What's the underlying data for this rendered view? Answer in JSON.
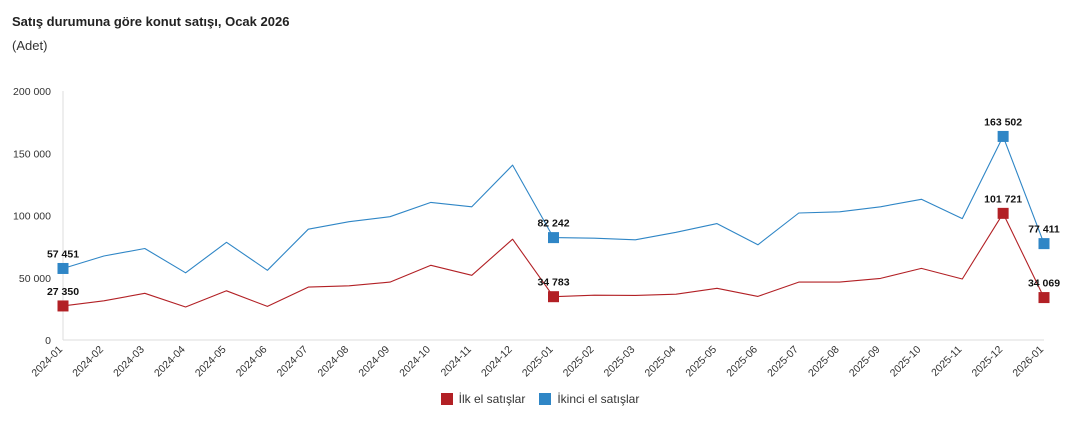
{
  "chart_data": {
    "type": "line",
    "title": "Satış durumuna göre konut satışı, Ocak 2026",
    "subtitle": "(Adet)",
    "xlabel": "",
    "ylabel": "",
    "ylim": [
      0,
      200000
    ],
    "y_ticks": [
      0,
      50000,
      100000,
      150000,
      200000
    ],
    "y_tick_labels": [
      "0",
      "50 000",
      "100 000",
      "150 000",
      "200 000"
    ],
    "grid": false,
    "legend_position": "bottom-center",
    "categories": [
      "2024-01",
      "2024-02",
      "2024-03",
      "2024-04",
      "2024-05",
      "2024-06",
      "2024-07",
      "2024-08",
      "2024-09",
      "2024-10",
      "2024-11",
      "2024-12",
      "2025-01",
      "2025-02",
      "2025-03",
      "2025-04",
      "2025-05",
      "2025-06",
      "2025-07",
      "2025-08",
      "2025-09",
      "2025-10",
      "2025-11",
      "2025-12",
      "2026-01"
    ],
    "series": [
      {
        "name": "İlk el satışlar",
        "color": "#b22025",
        "values": [
          27350,
          31500,
          37500,
          26500,
          39500,
          27000,
          42500,
          43500,
          46500,
          60000,
          52000,
          81000,
          34783,
          36000,
          35800,
          36800,
          41500,
          35000,
          46500,
          46500,
          49500,
          57500,
          49000,
          101721,
          34069
        ],
        "marked_points": [
          {
            "index": 0,
            "label": "27 350"
          },
          {
            "index": 12,
            "label": "34 783"
          },
          {
            "index": 23,
            "label": "101 721"
          },
          {
            "index": 24,
            "label": "34 069"
          }
        ]
      },
      {
        "name": "İkinci el satışlar",
        "color": "#2f86c6",
        "values": [
          57451,
          67500,
          73500,
          54000,
          78500,
          56000,
          89000,
          95000,
          99000,
          110500,
          107000,
          140500,
          82242,
          81800,
          80500,
          86500,
          93500,
          76500,
          102000,
          103000,
          107000,
          113000,
          97500,
          163502,
          77411
        ],
        "marked_points": [
          {
            "index": 0,
            "label": "57 451"
          },
          {
            "index": 12,
            "label": "82 242"
          },
          {
            "index": 23,
            "label": "163 502"
          },
          {
            "index": 24,
            "label": "77 411"
          }
        ]
      }
    ]
  }
}
